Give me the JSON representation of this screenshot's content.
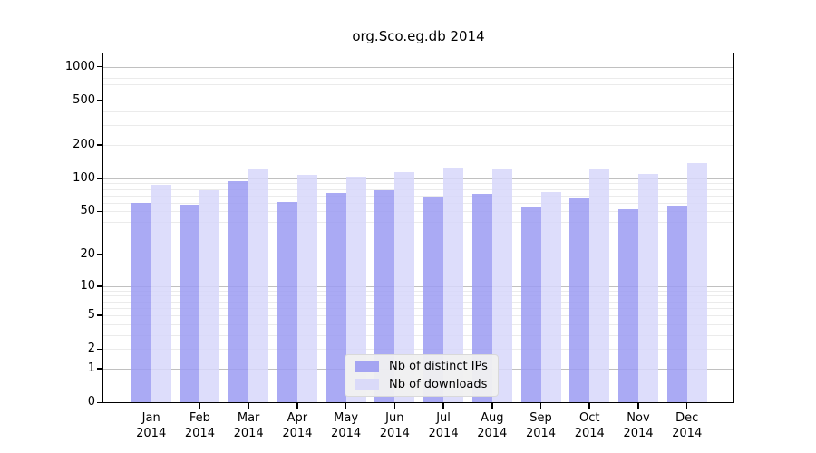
{
  "title": "org.Sco.eg.db 2014",
  "legend": {
    "position": "lower center",
    "items": [
      {
        "label": "Nb of distinct IPs",
        "color": "#9b9bf2"
      },
      {
        "label": "Nb of downloads",
        "color": "#d7d7fa"
      }
    ]
  },
  "chart_data": {
    "type": "bar",
    "title": "org.Sco.eg.db 2014",
    "categories": [
      "Jan 2014",
      "Feb 2014",
      "Mar 2014",
      "Apr 2014",
      "May 2014",
      "Jun 2014",
      "Jul 2014",
      "Aug 2014",
      "Sep 2014",
      "Oct 2014",
      "Nov 2014",
      "Dec 2014"
    ],
    "series": [
      {
        "name": "Nb of distinct IPs",
        "color": "#9b9bf2",
        "values": [
          60,
          57,
          94,
          61,
          73,
          78,
          68,
          72,
          55,
          67,
          52,
          56
        ]
      },
      {
        "name": "Nb of downloads",
        "color": "#d7d7fa",
        "values": [
          88,
          78,
          119,
          108,
          103,
          113,
          124,
          119,
          75,
          122,
          110,
          137
        ]
      }
    ],
    "xlabel": "",
    "ylabel": "",
    "y_scale": "log10(value+1)",
    "y_tick_values": [
      0,
      1,
      2,
      5,
      10,
      20,
      50,
      100,
      200,
      500,
      1000
    ],
    "ylim": [
      0,
      1340
    ],
    "grid": "horizontal minor+major (decades darker)",
    "legend_position": "lower center inside plot"
  }
}
